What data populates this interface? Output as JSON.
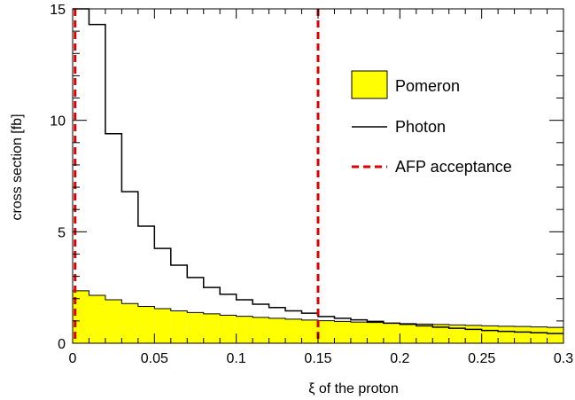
{
  "chart_data": {
    "type": "histogram",
    "xlabel": "ξ of the proton",
    "ylabel": "cross section [fb]",
    "xlim": [
      0,
      0.3
    ],
    "ylim": [
      0,
      15
    ],
    "x_ticks": [
      "0",
      "0.05",
      "0.1",
      "0.15",
      "0.2",
      "0.25",
      "0.3"
    ],
    "y_ticks": [
      "0",
      "5",
      "10",
      "15"
    ],
    "bin_width": 0.01,
    "series": [
      {
        "name": "Pomeron",
        "style": "filled",
        "fill": "#ffff00",
        "values": [
          2.35,
          2.15,
          1.95,
          1.78,
          1.65,
          1.55,
          1.45,
          1.38,
          1.32,
          1.26,
          1.21,
          1.16,
          1.12,
          1.08,
          1.04,
          1.01,
          0.98,
          0.95,
          0.93,
          0.9,
          0.88,
          0.86,
          0.84,
          0.82,
          0.8,
          0.78,
          0.76,
          0.75,
          0.73,
          0.71
        ]
      },
      {
        "name": "Photon",
        "style": "line",
        "color": "#000000",
        "values": [
          15.5,
          14.3,
          9.4,
          6.8,
          5.25,
          4.25,
          3.5,
          2.95,
          2.5,
          2.2,
          1.95,
          1.75,
          1.6,
          1.45,
          1.35,
          1.2,
          1.12,
          1.05,
          0.98,
          0.9,
          0.85,
          0.78,
          0.72,
          0.67,
          0.62,
          0.57,
          0.53,
          0.5,
          0.47,
          0.44
        ]
      }
    ],
    "vlines": {
      "name": "AFP acceptance",
      "color": "#dd0000",
      "x": [
        0.0015,
        0.15
      ]
    },
    "legend_position": "top-right",
    "grid": false
  }
}
